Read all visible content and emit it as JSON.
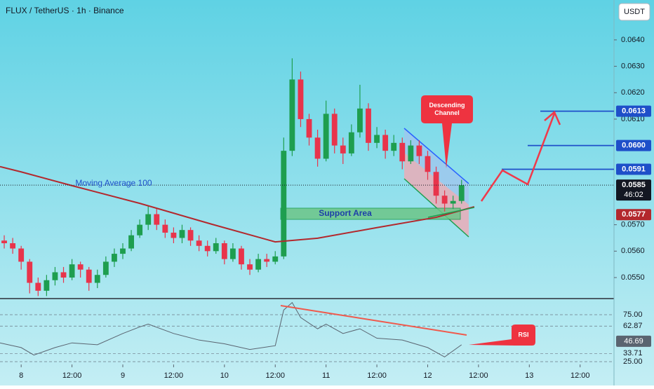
{
  "chart_data": {
    "type": "candlestick",
    "title": "FLUX / TetherUS · 1h · Binance",
    "currency": "USDT",
    "x": [
      -4,
      -2,
      0,
      2,
      4,
      6,
      8,
      10,
      12,
      14,
      16,
      18,
      20,
      22,
      24,
      26,
      28,
      30,
      32,
      34,
      36,
      38,
      40,
      42,
      44,
      46,
      48,
      50,
      52,
      54,
      56,
      58,
      60,
      62,
      64,
      66,
      68,
      70,
      72,
      74,
      76,
      78,
      80,
      82,
      84,
      86,
      88,
      90,
      92,
      94,
      96,
      98,
      100,
      102,
      104
    ],
    "open": [
      0.0564,
      0.0563,
      0.0561,
      0.0556,
      0.0548,
      0.0545,
      0.0549,
      0.0552,
      0.055,
      0.0555,
      0.0553,
      0.0548,
      0.0551,
      0.0556,
      0.0559,
      0.0561,
      0.0566,
      0.057,
      0.0574,
      0.057,
      0.0567,
      0.0565,
      0.0568,
      0.0564,
      0.0562,
      0.056,
      0.0563,
      0.0557,
      0.0561,
      0.0555,
      0.0553,
      0.0557,
      0.0556,
      0.0558,
      0.0598,
      0.0625,
      0.061,
      0.0603,
      0.0595,
      0.0612,
      0.06,
      0.0597,
      0.0605,
      0.0614,
      0.0601,
      0.0604,
      0.0598,
      0.0601,
      0.0594,
      0.06,
      0.0596,
      0.059,
      0.0581,
      0.0578,
      0.0579
    ],
    "high": [
      0.0566,
      0.0565,
      0.0562,
      0.0557,
      0.055,
      0.0551,
      0.0554,
      0.0554,
      0.0557,
      0.0556,
      0.0554,
      0.0553,
      0.0558,
      0.0561,
      0.0563,
      0.0568,
      0.0572,
      0.0577,
      0.0576,
      0.0572,
      0.0569,
      0.057,
      0.0569,
      0.0566,
      0.0564,
      0.0565,
      0.0564,
      0.0563,
      0.0562,
      0.0557,
      0.0559,
      0.0559,
      0.056,
      0.0603,
      0.0633,
      0.0628,
      0.0612,
      0.0606,
      0.0617,
      0.0614,
      0.0603,
      0.0608,
      0.0623,
      0.0616,
      0.0607,
      0.0606,
      0.0604,
      0.0603,
      0.0602,
      0.0602,
      0.0598,
      0.0592,
      0.0583,
      0.0581,
      0.0587
    ],
    "low": [
      0.0561,
      0.0559,
      0.0553,
      0.0544,
      0.0543,
      0.0543,
      0.0547,
      0.0548,
      0.0549,
      0.055,
      0.0545,
      0.0546,
      0.055,
      0.0554,
      0.0557,
      0.056,
      0.0565,
      0.0568,
      0.0568,
      0.0565,
      0.0563,
      0.0563,
      0.0562,
      0.056,
      0.0558,
      0.0559,
      0.0555,
      0.0556,
      0.0553,
      0.0551,
      0.0552,
      0.0554,
      0.0555,
      0.0557,
      0.0596,
      0.0607,
      0.06,
      0.0592,
      0.0594,
      0.0597,
      0.0593,
      0.0596,
      0.0603,
      0.0598,
      0.0599,
      0.0595,
      0.0596,
      0.0591,
      0.0593,
      0.0593,
      0.0587,
      0.0578,
      0.0575,
      0.0576,
      0.0578
    ],
    "close": [
      0.0563,
      0.0561,
      0.0556,
      0.0548,
      0.0545,
      0.0549,
      0.0552,
      0.055,
      0.0555,
      0.0553,
      0.0548,
      0.0551,
      0.0556,
      0.0559,
      0.0561,
      0.0566,
      0.057,
      0.0574,
      0.057,
      0.0567,
      0.0565,
      0.0568,
      0.0564,
      0.0562,
      0.056,
      0.0563,
      0.0557,
      0.0561,
      0.0555,
      0.0553,
      0.0557,
      0.0556,
      0.0558,
      0.0598,
      0.0625,
      0.061,
      0.0603,
      0.0595,
      0.0612,
      0.06,
      0.0597,
      0.0605,
      0.0614,
      0.0601,
      0.0604,
      0.0598,
      0.0601,
      0.0594,
      0.06,
      0.0596,
      0.059,
      0.0581,
      0.0578,
      0.0579,
      0.0585
    ],
    "up_color": "#1e9e4f",
    "down_color": "#e8344b",
    "moving_average": {
      "name": "Moving Average 100",
      "color": "#b3282d",
      "x": [
        -5,
        0,
        12,
        28,
        45,
        60,
        70,
        84,
        98,
        107
      ],
      "values": [
        0.0592,
        0.059,
        0.05848,
        0.05781,
        0.05702,
        0.05635,
        0.05649,
        0.05689,
        0.05728,
        0.05768
      ]
    },
    "xlim": [
      -5,
      140
    ],
    "xticks": [
      {
        "value": 0,
        "label": "8"
      },
      {
        "value": 12,
        "label": "12:00"
      },
      {
        "value": 24,
        "label": "9"
      },
      {
        "value": 36,
        "label": "12:00"
      },
      {
        "value": 48,
        "label": "10"
      },
      {
        "value": 60,
        "label": "12:00"
      },
      {
        "value": 72,
        "label": "11"
      },
      {
        "value": 84,
        "label": "12:00"
      },
      {
        "value": 96,
        "label": "12"
      },
      {
        "value": 108,
        "label": "12:00"
      },
      {
        "value": 120,
        "label": "13"
      },
      {
        "value": 132,
        "label": "12:00"
      }
    ],
    "ylim": [
      0.05423,
      0.06551
    ],
    "yticks": [
      {
        "value": 0.055,
        "label": "0.0550"
      },
      {
        "value": 0.056,
        "label": "0.0560"
      },
      {
        "value": 0.057,
        "label": "0.0570"
      },
      {
        "value": 0.061,
        "label": "0.0610"
      },
      {
        "value": 0.062,
        "label": "0.0620"
      },
      {
        "value": 0.063,
        "label": "0.0630"
      },
      {
        "value": 0.064,
        "label": "0.0640"
      }
    ],
    "levels": [
      {
        "value": 0.0613,
        "label": "0.0613",
        "color": "#1e4fc9"
      },
      {
        "value": 0.06,
        "label": "0.0600",
        "color": "#1e4fc9"
      },
      {
        "value": 0.0591,
        "label": "0.0591",
        "color": "#1e4fc9"
      }
    ],
    "current_price": {
      "value": 0.0585,
      "label": "0.0585",
      "countdown": "46:02"
    },
    "ma_price": {
      "value": 0.0577,
      "label": "0.0577"
    },
    "annotations": {
      "support": "Support Area",
      "channel": "Descending Channel",
      "rsi": "RSI"
    },
    "rsi": {
      "color": "#5a6470",
      "x": [
        -5,
        0,
        3,
        8,
        12,
        18,
        24,
        28,
        30,
        36,
        42,
        48,
        54,
        60,
        62,
        64,
        66,
        70,
        72,
        76,
        80,
        84,
        90,
        96,
        100,
        104
      ],
      "values": [
        45,
        40,
        32,
        40,
        45,
        43,
        55,
        62,
        65,
        55,
        48,
        44,
        38,
        42,
        80,
        88,
        72,
        60,
        65,
        55,
        60,
        50,
        48,
        40,
        30,
        43
      ],
      "ylim": [
        22,
        90.7
      ],
      "yticks": [
        {
          "value": 75,
          "label": "75.00"
        },
        {
          "value": 62.87,
          "label": "62.87"
        },
        {
          "value": 33.71,
          "label": "33.71"
        },
        {
          "value": 25,
          "label": "25.00"
        }
      ],
      "current": {
        "value": 46.69,
        "label": "46.69"
      }
    }
  }
}
